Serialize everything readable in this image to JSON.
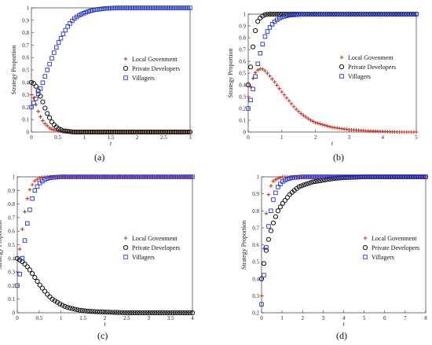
{
  "colors": {
    "local_government": "#c0392b",
    "private_developers": "#111111",
    "villagers": "#2233cc"
  },
  "chart_data": [
    {
      "caption": "(a)",
      "type": "scatter",
      "xlabel": "t",
      "ylabel": "Strategy Proportion",
      "xlim": [
        0,
        3
      ],
      "ylim": [
        0,
        1
      ],
      "xticks": [
        "0",
        "0.5",
        "1",
        "1.5",
        "2",
        "2.5",
        "3"
      ],
      "yticks": [
        "0",
        "0.1",
        "0.2",
        "0.3",
        "0.4",
        "0.5",
        "0.6",
        "0.7",
        "0.8",
        "0.9",
        "1"
      ],
      "legend_position": "right",
      "series": [
        {
          "name": "Local Govenment",
          "marker": "plus",
          "x": [
            0,
            0.05,
            0.1,
            0.15,
            0.2,
            0.25,
            0.3,
            0.35,
            0.4,
            0.5,
            0.6,
            0.8,
            1.0,
            1.5,
            2.0,
            2.5,
            3.0
          ],
          "y": [
            0.3,
            0.27,
            0.2,
            0.14,
            0.1,
            0.07,
            0.05,
            0.03,
            0.02,
            0.01,
            0.005,
            0,
            0,
            0,
            0,
            0,
            0
          ]
        },
        {
          "name": "Private Developers",
          "marker": "circle",
          "x": [
            0,
            0.05,
            0.1,
            0.15,
            0.2,
            0.25,
            0.3,
            0.35,
            0.4,
            0.45,
            0.5,
            0.55,
            0.6,
            0.7,
            0.8,
            1.0,
            1.5,
            2.0,
            2.5,
            3.0
          ],
          "y": [
            0.4,
            0.39,
            0.36,
            0.31,
            0.26,
            0.2,
            0.15,
            0.11,
            0.07,
            0.05,
            0.03,
            0.02,
            0.01,
            0.005,
            0,
            0,
            0,
            0,
            0,
            0
          ]
        },
        {
          "name": "Villagers",
          "marker": "square",
          "x": [
            0,
            0.1,
            0.2,
            0.3,
            0.4,
            0.5,
            0.6,
            0.7,
            0.8,
            0.9,
            1.0,
            1.1,
            1.2,
            1.4,
            1.6,
            1.8,
            2.0,
            2.5,
            3.0
          ],
          "y": [
            0.2,
            0.28,
            0.38,
            0.5,
            0.61,
            0.71,
            0.79,
            0.86,
            0.91,
            0.94,
            0.96,
            0.975,
            0.985,
            0.995,
            1,
            1,
            1,
            1,
            1
          ]
        }
      ]
    },
    {
      "caption": "(b)",
      "type": "scatter",
      "xlabel": "t",
      "ylabel": "Strategy Proportion",
      "xlim": [
        0,
        5
      ],
      "ylim": [
        0,
        1
      ],
      "xticks": [
        "0",
        "1",
        "2",
        "3",
        "4",
        "5"
      ],
      "yticks": [
        "0",
        "0.1",
        "0.2",
        "0.3",
        "0.4",
        "0.5",
        "0.6",
        "0.7",
        "0.8",
        "0.9",
        "1"
      ],
      "legend_position": "right",
      "series": [
        {
          "name": "Local Govenment",
          "marker": "plus",
          "x": [
            0,
            0.1,
            0.2,
            0.3,
            0.4,
            0.5,
            0.6,
            0.8,
            1.0,
            1.2,
            1.4,
            1.6,
            1.8,
            2.0,
            2.5,
            3.0,
            3.5,
            4.0,
            4.5,
            5.0
          ],
          "y": [
            0.3,
            0.42,
            0.5,
            0.53,
            0.54,
            0.52,
            0.49,
            0.42,
            0.34,
            0.27,
            0.2,
            0.15,
            0.11,
            0.08,
            0.04,
            0.02,
            0.01,
            0.005,
            0,
            0
          ]
        },
        {
          "name": "Private Developers",
          "marker": "circle",
          "x": [
            0,
            0.05,
            0.1,
            0.15,
            0.2,
            0.25,
            0.3,
            0.4,
            0.5,
            0.6,
            0.8,
            1.0,
            2.0,
            3.0,
            4.0,
            5.0
          ],
          "y": [
            0.4,
            0.5,
            0.62,
            0.74,
            0.84,
            0.91,
            0.95,
            0.98,
            0.995,
            1,
            1,
            1,
            1,
            1,
            1,
            1
          ]
        },
        {
          "name": "Villagers",
          "marker": "square",
          "x": [
            0,
            0.1,
            0.2,
            0.3,
            0.4,
            0.5,
            0.6,
            0.7,
            0.8,
            0.9,
            1.0,
            1.2,
            1.4,
            1.6,
            2.0,
            2.5,
            3.0,
            4.0,
            5.0
          ],
          "y": [
            0.2,
            0.3,
            0.45,
            0.6,
            0.72,
            0.81,
            0.87,
            0.91,
            0.94,
            0.96,
            0.975,
            0.99,
            0.995,
            1,
            1,
            1,
            1,
            1,
            1
          ]
        }
      ]
    },
    {
      "caption": "(c)",
      "type": "scatter",
      "xlabel": "t",
      "ylabel": "Strategy Proportion",
      "xlim": [
        0,
        4
      ],
      "ylim": [
        0,
        1
      ],
      "xticks": [
        "0",
        "0.5",
        "1",
        "1.5",
        "2",
        "2.5",
        "3",
        "3.5",
        "4"
      ],
      "yticks": [
        "0",
        "0.1",
        "0.2",
        "0.3",
        "0.4",
        "0.5",
        "0.6",
        "0.7",
        "0.8",
        "0.9",
        "1"
      ],
      "legend_position": "right",
      "series": [
        {
          "name": "Local Govenment",
          "marker": "plus",
          "x": [
            0,
            0.05,
            0.1,
            0.15,
            0.2,
            0.25,
            0.3,
            0.4,
            0.5,
            0.6,
            0.8,
            1.0,
            1.5,
            2.0,
            2.5,
            3.0,
            3.5,
            4.0
          ],
          "y": [
            0.3,
            0.45,
            0.58,
            0.7,
            0.8,
            0.87,
            0.92,
            0.97,
            0.99,
            1,
            1,
            1,
            1,
            1,
            1,
            1,
            1,
            1
          ]
        },
        {
          "name": "Private Developers",
          "marker": "circle",
          "x": [
            0,
            0.1,
            0.2,
            0.3,
            0.4,
            0.5,
            0.6,
            0.7,
            0.8,
            0.9,
            1.0,
            1.1,
            1.2,
            1.4,
            1.6,
            1.8,
            2.0,
            2.5,
            3.0,
            3.5,
            4.0
          ],
          "y": [
            0.4,
            0.38,
            0.35,
            0.31,
            0.26,
            0.21,
            0.17,
            0.13,
            0.1,
            0.08,
            0.06,
            0.045,
            0.035,
            0.02,
            0.012,
            0.008,
            0.005,
            0,
            0,
            0,
            0
          ]
        },
        {
          "name": "Villagers",
          "marker": "square",
          "x": [
            0,
            0.05,
            0.1,
            0.15,
            0.2,
            0.25,
            0.3,
            0.35,
            0.4,
            0.5,
            0.6,
            0.7,
            0.8,
            1.0,
            1.5,
            2.0,
            2.5,
            3.0,
            3.5,
            4.0
          ],
          "y": [
            0.2,
            0.27,
            0.37,
            0.48,
            0.6,
            0.7,
            0.78,
            0.85,
            0.9,
            0.95,
            0.975,
            0.99,
            0.995,
            1,
            1,
            1,
            1,
            1,
            1,
            1
          ]
        }
      ]
    },
    {
      "caption": "(d)",
      "type": "scatter",
      "xlabel": "t",
      "ylabel": "Strategy Proportion",
      "xlim": [
        0,
        8
      ],
      "ylim": [
        0.2,
        1
      ],
      "xticks": [
        "0",
        "1",
        "2",
        "3",
        "4",
        "5",
        "6",
        "7",
        "8"
      ],
      "yticks": [
        "0.2",
        "0.3",
        "0.4",
        "0.5",
        "0.6",
        "0.7",
        "0.8",
        "0.9",
        "1"
      ],
      "legend_position": "right",
      "series": [
        {
          "name": "Local Govenment",
          "marker": "plus",
          "x": [
            0,
            0.1,
            0.2,
            0.3,
            0.4,
            0.5,
            0.6,
            0.8,
            1.0,
            1.5,
            2.0,
            3.0,
            4.0,
            5.0,
            6.0,
            7.0,
            8.0
          ],
          "y": [
            0.3,
            0.55,
            0.75,
            0.87,
            0.93,
            0.96,
            0.98,
            0.99,
            1,
            1,
            1,
            1,
            1,
            1,
            1,
            1,
            1
          ]
        },
        {
          "name": "Private Developers",
          "marker": "circle",
          "x": [
            0,
            0.1,
            0.2,
            0.3,
            0.4,
            0.6,
            0.8,
            1.0,
            1.2,
            1.4,
            1.6,
            1.8,
            2.0,
            2.5,
            3.0,
            3.5,
            4.0,
            5.0,
            6.0,
            7.0,
            8.0
          ],
          "y": [
            0.4,
            0.48,
            0.55,
            0.61,
            0.66,
            0.74,
            0.8,
            0.84,
            0.87,
            0.9,
            0.92,
            0.94,
            0.95,
            0.97,
            0.98,
            0.99,
            0.995,
            1,
            1,
            1,
            1
          ]
        },
        {
          "name": "Villagers",
          "marker": "square",
          "x": [
            0,
            0.1,
            0.2,
            0.3,
            0.4,
            0.5,
            0.6,
            0.8,
            1.0,
            1.2,
            1.5,
            2.0,
            2.5,
            3.0,
            4.0,
            5.0,
            6.0,
            7.0,
            8.0
          ],
          "y": [
            0.25,
            0.4,
            0.55,
            0.67,
            0.76,
            0.83,
            0.88,
            0.94,
            0.97,
            0.985,
            0.995,
            1,
            1,
            1,
            1,
            1,
            1,
            1,
            1
          ]
        }
      ]
    }
  ]
}
